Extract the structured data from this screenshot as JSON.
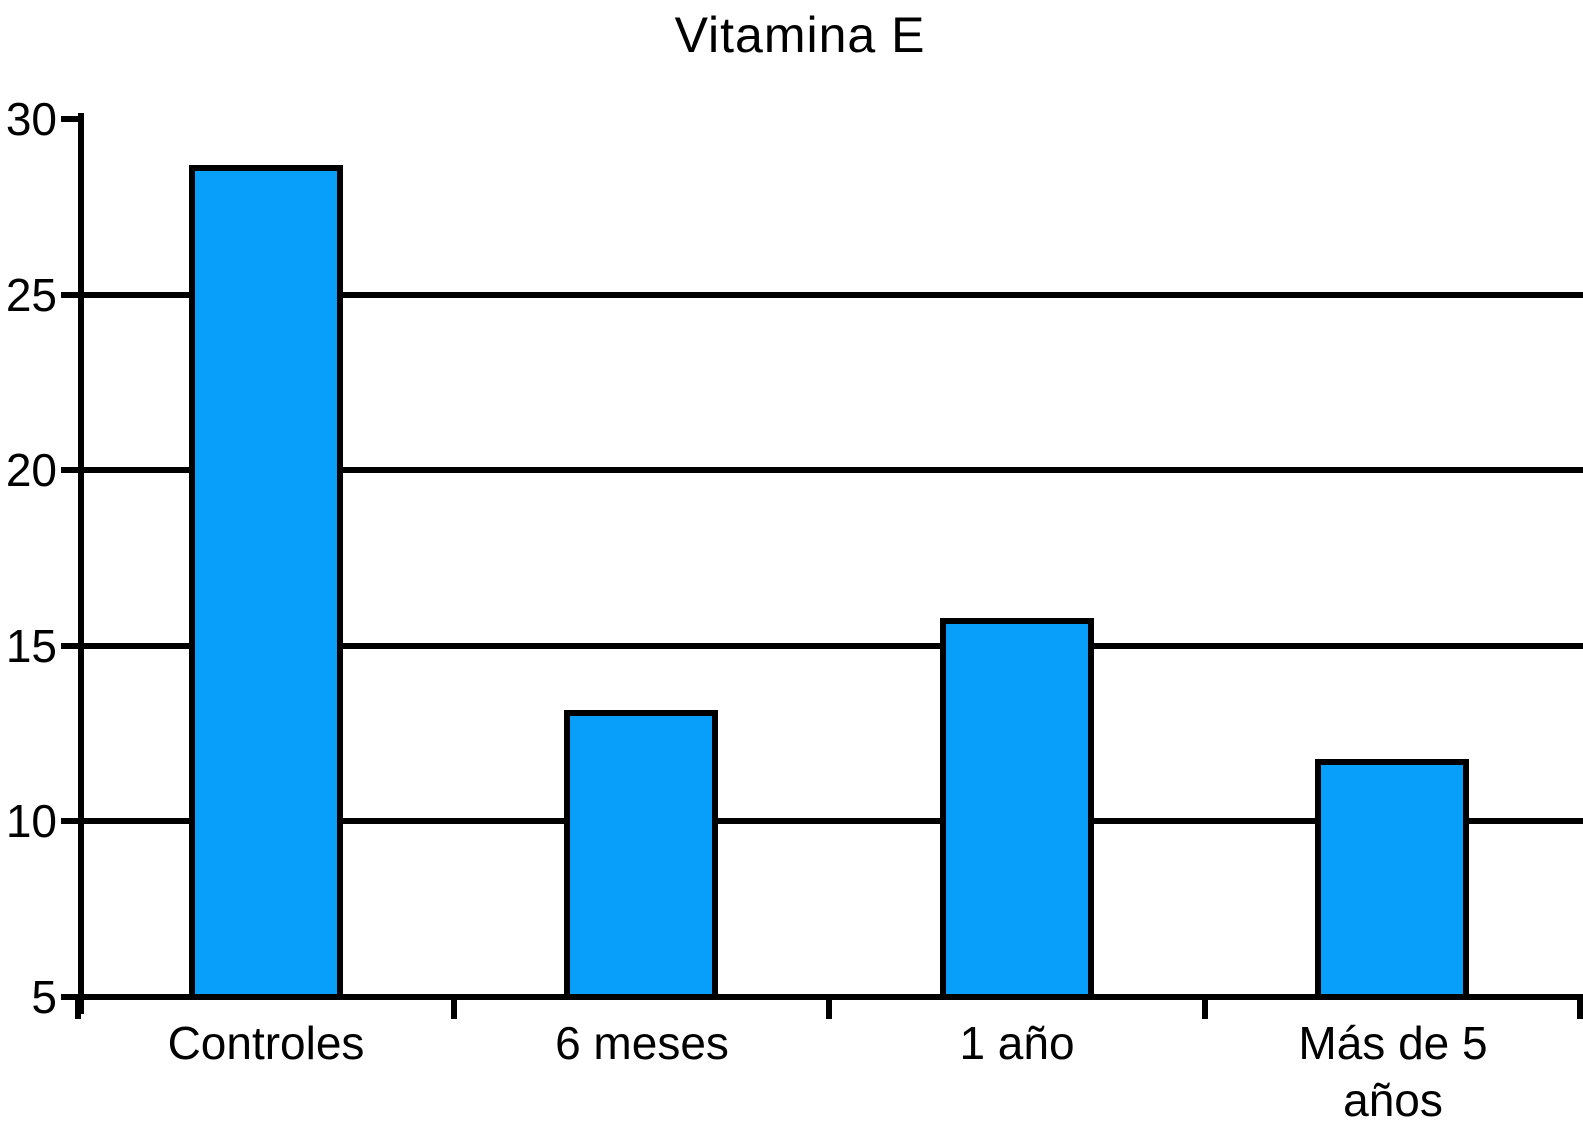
{
  "chart_data": {
    "type": "bar",
    "title": "Vitamina E",
    "categories": [
      "Controles",
      "6 meses",
      "1 año",
      "Más de 5\naños"
    ],
    "values": [
      28.6,
      13.1,
      15.7,
      11.7
    ],
    "xlabel": "",
    "ylabel": "",
    "ylim": [
      5,
      30
    ],
    "yticks": [
      5,
      10,
      15,
      20,
      25,
      30
    ],
    "grid": "horizontal-gridlines-at-10-15-20-25",
    "legend": "none",
    "colors": {
      "bar_fill": "#089FFB",
      "bar_border": "#000000",
      "axis": "#000000",
      "background": "#ffffff",
      "text": "#000000"
    }
  }
}
